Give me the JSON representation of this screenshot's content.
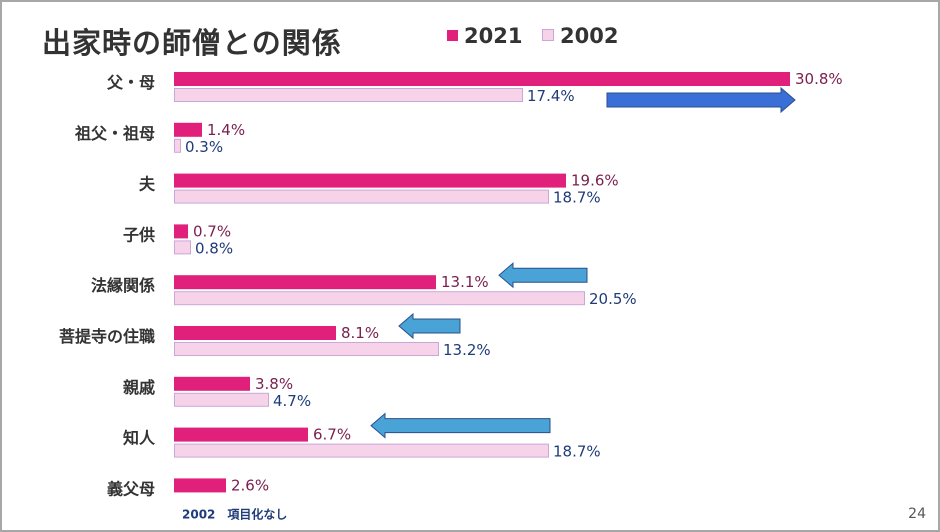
{
  "title": "出家時の師僧との関係",
  "page_number": "24",
  "colors": {
    "series_2021": "#e0207a",
    "series_2002": "#f7d3ea",
    "series_2002_border": "#c9a8d8",
    "label_2021": "#7a1f4e",
    "label_2002": "#1f3b7a",
    "category": "#333333",
    "note": "#1f3b7a",
    "arrow_right": "#3a6fd8",
    "arrow_left": "#4aa3d6"
  },
  "chart_data": {
    "type": "bar",
    "orientation": "horizontal",
    "title": "出家時の師僧との関係",
    "categories": [
      "父・母",
      "祖父・祖母",
      "夫",
      "子供",
      "法縁関係",
      "菩提寺の住職",
      "親戚",
      "知人",
      "義父母"
    ],
    "series": [
      {
        "name": "2021",
        "values": [
          30.8,
          1.4,
          19.6,
          0.7,
          13.1,
          8.1,
          3.8,
          6.7,
          2.6
        ],
        "labels": [
          "30.8%",
          "1.4%",
          "19.6%",
          "0.7%",
          "13.1%",
          "8.1%",
          "3.8%",
          "6.7%",
          "2.6%"
        ]
      },
      {
        "name": "2002",
        "values": [
          17.4,
          0.3,
          18.7,
          0.8,
          20.5,
          13.2,
          4.7,
          18.7,
          null
        ],
        "labels": [
          "17.4%",
          "0.3%",
          "18.7%",
          "0.8%",
          "20.5%",
          "13.2%",
          "4.7%",
          "18.7%",
          null
        ]
      }
    ],
    "xlim": [
      0,
      31
    ],
    "grid": false,
    "legend_position": "top",
    "note": "2002　項目化なし",
    "annotations": [
      {
        "type": "arrow",
        "direction": "right",
        "category": "父・母"
      },
      {
        "type": "arrow",
        "direction": "left",
        "category": "法縁関係"
      },
      {
        "type": "arrow",
        "direction": "left",
        "category": "菩提寺の住職"
      },
      {
        "type": "arrow",
        "direction": "left",
        "category": "知人"
      }
    ]
  }
}
